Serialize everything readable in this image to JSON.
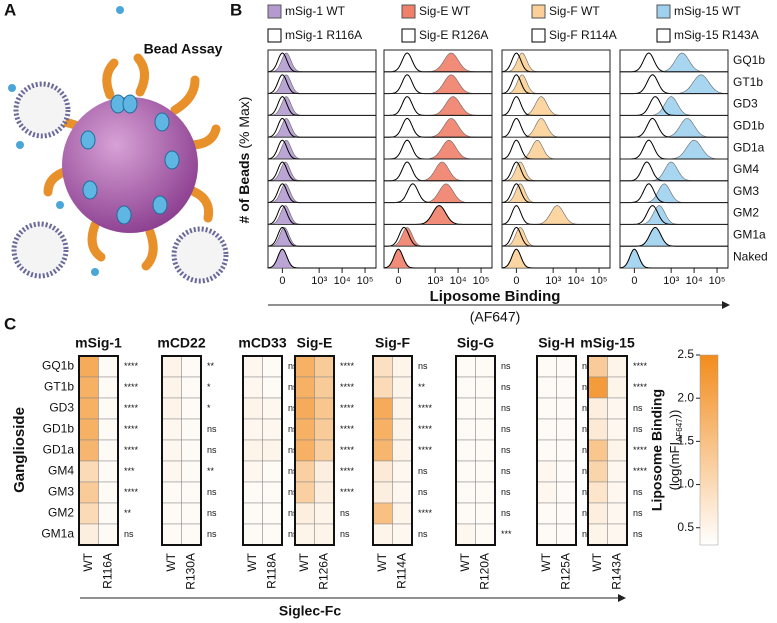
{
  "panel_labels": [
    "A",
    "B",
    "C"
  ],
  "figure_a": {
    "title": "Bead Assay"
  },
  "chart_data": [
    {
      "type": "histogram-grid",
      "categories": [
        "GQ1b",
        "GT1b",
        "GD3",
        "GD1b",
        "GD1a",
        "GM4",
        "GM3",
        "GM2",
        "GM1a",
        "Naked"
      ],
      "series": [
        {
          "name": "mSig-1 WT",
          "color": "#b39bd0",
          "values": [
            20,
            20,
            20,
            20,
            20,
            15,
            15,
            15,
            10,
            0
          ]
        },
        {
          "name": "mSig-1 R116A",
          "color": "#000000",
          "values": [
            0,
            0,
            0,
            0,
            0,
            0,
            0,
            0,
            0,
            0
          ]
        },
        {
          "name": "Sig-E WT",
          "color": "#f0806a",
          "values": [
            5000,
            5000,
            6000,
            5000,
            4000,
            2000,
            3000,
            1500,
            50,
            0
          ]
        },
        {
          "name": "Sig-E R126A",
          "color": "#000000",
          "values": [
            50,
            50,
            50,
            50,
            50,
            50,
            100,
            1500,
            30,
            0
          ]
        },
        {
          "name": "Sig-F WT",
          "color": "#fbd098",
          "values": [
            30,
            30,
            300,
            300,
            200,
            20,
            20,
            1500,
            20,
            0
          ]
        },
        {
          "name": "Sig-F R114A",
          "color": "#000000",
          "values": [
            0,
            0,
            0,
            0,
            0,
            0,
            0,
            0,
            0,
            0
          ]
        },
        {
          "name": "mSig-15 WT",
          "color": "#9fd0ee",
          "values": [
            3000,
            20000,
            1000,
            5000,
            10000,
            1000,
            500,
            300,
            200,
            0
          ]
        },
        {
          "name": "mSig-15 R143A",
          "color": "#000000",
          "values": [
            100,
            150,
            200,
            150,
            100,
            80,
            100,
            150,
            200,
            0
          ]
        }
      ],
      "xlim": [
        -100,
        300000
      ],
      "xticks": [
        0,
        {
          "value": 1000,
          "label": "10³"
        },
        {
          "value": 10000,
          "label": "10⁴"
        },
        {
          "value": 100000,
          "label": "10⁵"
        }
      ],
      "y_label": {
        "bold": "# of Beads",
        "rest": "(% Max)"
      },
      "x_label": {
        "bold": "Liposome Binding",
        "rest": "(AF647)"
      }
    },
    {
      "type": "heatmap",
      "categories": [
        "GQ1b",
        "GT1b",
        "GD3",
        "GD1b",
        "GD1a",
        "GM4",
        "GM3",
        "GM2",
        "GM1a"
      ],
      "groups": [
        {
          "name": "mSig-1",
          "columns": [
            "WT",
            "R116A"
          ],
          "values": [
            [
              1.9,
              0.4
            ],
            [
              1.8,
              0.4
            ],
            [
              1.8,
              0.4
            ],
            [
              1.8,
              0.4
            ],
            [
              1.7,
              0.4
            ],
            [
              1.0,
              0.4
            ],
            [
              1.3,
              0.4
            ],
            [
              1.0,
              0.4
            ],
            [
              0.6,
              0.4
            ]
          ],
          "significance": [
            "****",
            "****",
            "****",
            "****",
            "****",
            "***",
            "****",
            "**",
            "ns"
          ]
        },
        {
          "name": "mCD22",
          "columns": [
            "WT",
            "R130A"
          ],
          "values": [
            [
              0.5,
              0.4
            ],
            [
              0.5,
              0.4
            ],
            [
              0.5,
              0.4
            ],
            [
              0.45,
              0.4
            ],
            [
              0.45,
              0.4
            ],
            [
              0.45,
              0.4
            ],
            [
              0.4,
              0.4
            ],
            [
              0.4,
              0.4
            ],
            [
              0.4,
              0.4
            ]
          ],
          "significance": [
            "**",
            "*",
            "*",
            "ns",
            "ns",
            "**",
            "ns",
            "ns",
            "ns"
          ]
        },
        {
          "name": "mCD33",
          "columns": [
            "WT",
            "R118A"
          ],
          "values": [
            [
              0.45,
              0.4
            ],
            [
              0.45,
              0.4
            ],
            [
              0.5,
              0.45
            ],
            [
              0.45,
              0.45
            ],
            [
              0.5,
              0.5
            ],
            [
              0.45,
              0.4
            ],
            [
              0.4,
              0.4
            ],
            [
              0.4,
              0.4
            ],
            [
              0.4,
              0.4
            ]
          ],
          "significance": [
            "ns",
            "ns",
            "ns",
            "ns",
            "ns",
            "ns",
            "ns",
            "ns",
            "ns"
          ]
        },
        {
          "name": "Sig-E",
          "columns": [
            "WT",
            "R126A"
          ],
          "values": [
            [
              1.8,
              1.3
            ],
            [
              1.8,
              1.3
            ],
            [
              1.9,
              1.4
            ],
            [
              1.8,
              1.3
            ],
            [
              1.8,
              1.2
            ],
            [
              1.2,
              0.6
            ],
            [
              1.2,
              0.6
            ],
            [
              0.6,
              0.5
            ],
            [
              0.5,
              0.5
            ]
          ],
          "significance": [
            "****",
            "****",
            "****",
            "****",
            "****",
            "****",
            "****",
            "ns",
            "ns"
          ]
        },
        {
          "name": "Sig-F",
          "columns": [
            "WT",
            "R114A"
          ],
          "values": [
            [
              0.9,
              0.5
            ],
            [
              1.0,
              0.5
            ],
            [
              1.9,
              0.5
            ],
            [
              1.8,
              0.5
            ],
            [
              1.7,
              0.5
            ],
            [
              0.7,
              0.45
            ],
            [
              0.6,
              0.45
            ],
            [
              1.5,
              0.5
            ],
            [
              0.5,
              0.45
            ]
          ],
          "significance": [
            "ns",
            "**",
            "****",
            "****",
            "****",
            "ns",
            "ns",
            "****",
            "ns"
          ]
        },
        {
          "name": "Sig-G",
          "columns": [
            "WT",
            "R120A"
          ],
          "values": [
            [
              0.4,
              0.4
            ],
            [
              0.4,
              0.4
            ],
            [
              0.4,
              0.4
            ],
            [
              0.4,
              0.4
            ],
            [
              0.4,
              0.4
            ],
            [
              0.4,
              0.4
            ],
            [
              0.4,
              0.4
            ],
            [
              0.4,
              0.4
            ],
            [
              0.45,
              0.4
            ]
          ],
          "significance": [
            "ns",
            "ns",
            "ns",
            "ns",
            "ns",
            "ns",
            "ns",
            "ns",
            "***"
          ]
        },
        {
          "name": "Sig-H",
          "columns": [
            "WT",
            "R125A"
          ],
          "values": [
            [
              0.4,
              0.4
            ],
            [
              0.4,
              0.4
            ],
            [
              0.4,
              0.4
            ],
            [
              0.4,
              0.4
            ],
            [
              0.4,
              0.4
            ],
            [
              0.45,
              0.4
            ],
            [
              0.45,
              0.4
            ],
            [
              0.4,
              0.4
            ],
            [
              0.4,
              0.4
            ]
          ],
          "significance": [
            "ns",
            "ns",
            "ns",
            "ns",
            "ns",
            "ns",
            "ns",
            "ns",
            "ns"
          ]
        },
        {
          "name": "mSig-15",
          "columns": [
            "WT",
            "R143A"
          ],
          "values": [
            [
              1.3,
              0.5
            ],
            [
              2.2,
              0.5
            ],
            [
              0.6,
              0.45
            ],
            [
              0.7,
              0.45
            ],
            [
              1.4,
              0.5
            ],
            [
              1.1,
              0.45
            ],
            [
              0.8,
              0.45
            ],
            [
              0.6,
              0.45
            ],
            [
              0.5,
              0.45
            ]
          ],
          "significance": [
            "****",
            "****",
            "ns",
            "ns",
            "****",
            "****",
            "ns",
            "ns",
            "ns"
          ]
        }
      ],
      "clim": [
        0.3,
        2.5
      ],
      "cticks": [
        0.5,
        {
          "value": 1,
          "label": "1.0"
        },
        1.5,
        {
          "value": 2,
          "label": "2.0"
        },
        2.5
      ],
      "color_low": "#ffffff",
      "color_high": "#f28c1c",
      "x_label": "Siglec-Fc",
      "y_label": "Ganglioside",
      "colorbar_label": {
        "title": "Liposome Binding",
        "pre": "(log(mFI",
        "sub": "AF647",
        "post": "))"
      }
    }
  ]
}
